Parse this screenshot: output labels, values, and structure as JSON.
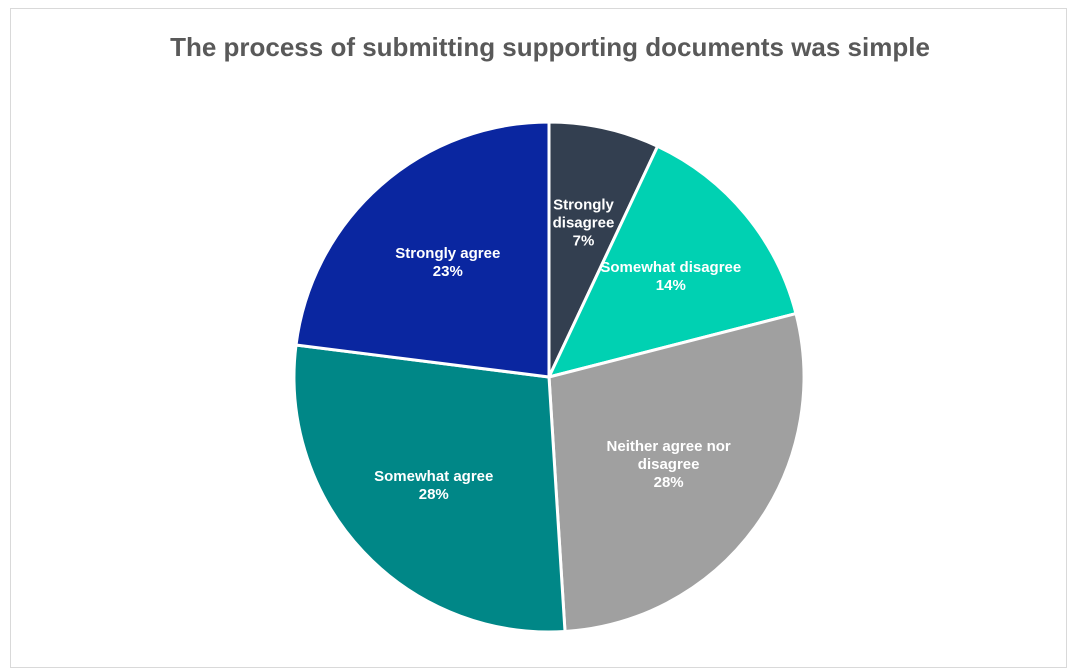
{
  "chart_data": {
    "type": "pie",
    "title": "The process of submitting supporting documents was simple",
    "slices": [
      {
        "label": "Strongly disagree",
        "label_lines": [
          "Strongly",
          "disagree"
        ],
        "value": 7,
        "value_label": "7%",
        "color": "#333f50"
      },
      {
        "label": "Somewhat disagree",
        "label_lines": [
          "Somewhat disagree"
        ],
        "value": 14,
        "value_label": "14%",
        "color": "#00d1b2"
      },
      {
        "label": "Neither agree nor disagree",
        "label_lines": [
          "Neither agree nor",
          "disagree"
        ],
        "value": 28,
        "value_label": "28%",
        "color": "#a0a0a0"
      },
      {
        "label": "Somewhat agree",
        "label_lines": [
          "Somewhat agree"
        ],
        "value": 28,
        "value_label": "28%",
        "color": "#008787"
      },
      {
        "label": "Strongly agree",
        "label_lines": [
          "Strongly agree"
        ],
        "value": 23,
        "value_label": "23%",
        "color": "#0a26a0"
      }
    ],
    "legend": "none",
    "start_angle": "12 o'clock",
    "direction": "clockwise"
  }
}
